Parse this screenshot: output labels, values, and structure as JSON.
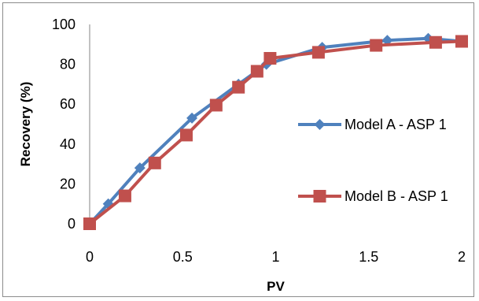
{
  "chart_data": {
    "type": "line",
    "title": "",
    "xlabel": "PV",
    "ylabel": "Recovery (%)",
    "xlim": [
      0,
      2
    ],
    "ylim": [
      0,
      100
    ],
    "x_ticks": [
      "0",
      "0.5",
      "1",
      "1.5",
      "2"
    ],
    "y_ticks": [
      "0",
      "20",
      "40",
      "60",
      "80",
      "100"
    ],
    "grid": false,
    "legend_position": "right",
    "series": [
      {
        "name": "Model A - ASP 1",
        "color": "#4F81BD",
        "marker": "diamond",
        "x": [
          0.0,
          0.1,
          0.27,
          0.55,
          0.8,
          0.95,
          1.25,
          1.6,
          1.82,
          2.0
        ],
        "y": [
          0,
          10,
          28,
          53,
          70,
          80,
          88.5,
          92,
          93,
          91.5
        ]
      },
      {
        "name": "Model B - ASP 1",
        "color": "#C0504D",
        "marker": "square",
        "x": [
          0.0,
          0.19,
          0.35,
          0.52,
          0.68,
          0.8,
          0.9,
          0.97,
          1.23,
          1.54,
          1.86,
          2.0
        ],
        "y": [
          0,
          14,
          30.5,
          44.5,
          59.5,
          68.5,
          76.5,
          83,
          86,
          89.5,
          91,
          91.5
        ]
      }
    ]
  }
}
